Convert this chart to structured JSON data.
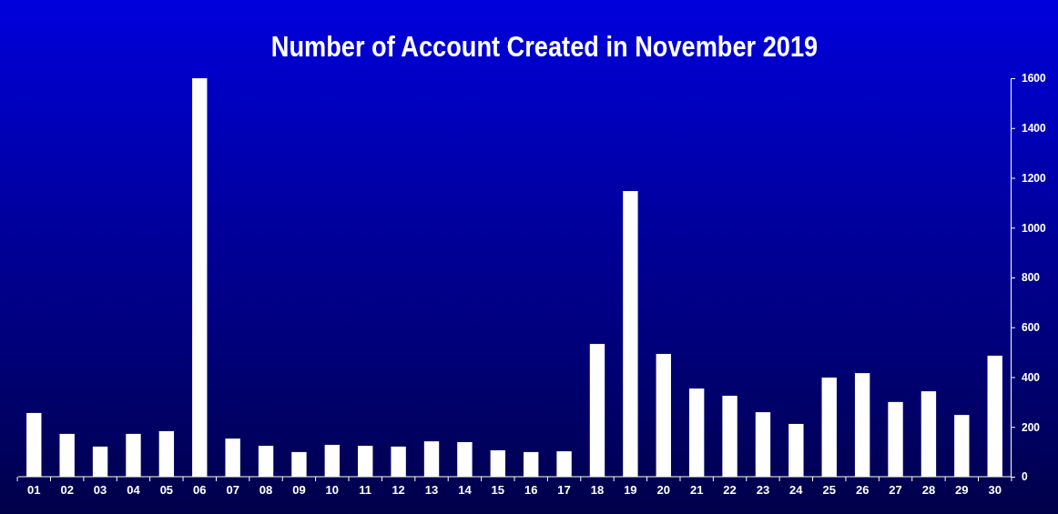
{
  "chart_data": {
    "type": "bar",
    "title": "Number of Account Created in November 2019",
    "categories": [
      "01",
      "02",
      "03",
      "04",
      "05",
      "06",
      "07",
      "08",
      "09",
      "10",
      "11",
      "12",
      "13",
      "14",
      "15",
      "16",
      "17",
      "18",
      "19",
      "20",
      "21",
      "22",
      "23",
      "24",
      "25",
      "26",
      "27",
      "28",
      "29",
      "30"
    ],
    "values": [
      256,
      172,
      121,
      172,
      183,
      1600,
      153,
      124,
      99,
      128,
      124,
      121,
      142,
      139,
      106,
      99,
      102,
      533,
      1147,
      493,
      354,
      325,
      259,
      212,
      398,
      416,
      300,
      343,
      248,
      486
    ],
    "color": "#ffffff",
    "ylim": [
      0,
      1600
    ],
    "yticks": [
      0,
      200,
      400,
      600,
      800,
      1000,
      1200,
      1400,
      1600
    ]
  }
}
